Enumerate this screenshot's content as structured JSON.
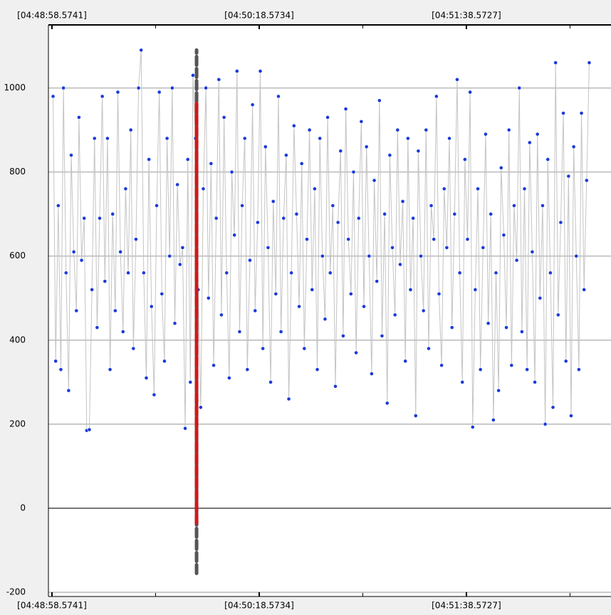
{
  "chart_data": {
    "type": "line-scatter",
    "x": [
      17339,
      17340,
      17341,
      17342,
      17343,
      17344,
      17345,
      17346,
      17347,
      17348,
      17349,
      17350,
      17351,
      17352,
      17353,
      17354,
      17355,
      17356,
      17357,
      17358,
      17359,
      17360,
      17361,
      17362,
      17363,
      17364,
      17365,
      17366,
      17367,
      17368,
      17369,
      17370,
      17371,
      17372,
      17373,
      17374,
      17375,
      17376,
      17377,
      17378,
      17379,
      17380,
      17381,
      17382,
      17383,
      17384,
      17385,
      17386,
      17387,
      17388,
      17389,
      17390,
      17391,
      17392,
      17393,
      17394,
      17395,
      17396,
      17397,
      17398,
      17399,
      17400,
      17401,
      17402,
      17403,
      17404,
      17405,
      17406,
      17407,
      17408,
      17409,
      17410,
      17411,
      17412,
      17413,
      17414,
      17415,
      17416,
      17417,
      17418,
      17419,
      17420,
      17421,
      17422,
      17423,
      17424,
      17425,
      17426,
      17427,
      17428,
      17429,
      17430,
      17431,
      17432,
      17433,
      17434,
      17435,
      17436,
      17437,
      17438,
      17439,
      17440,
      17441,
      17442,
      17443,
      17444,
      17445,
      17446,
      17447,
      17448,
      17449,
      17450,
      17451,
      17452,
      17453,
      17454,
      17455,
      17456,
      17457,
      17458,
      17459,
      17460,
      17461,
      17462,
      17463,
      17464,
      17465,
      17466,
      17467,
      17468,
      17469,
      17470,
      17471,
      17472,
      17473,
      17474,
      17475,
      17476,
      17477,
      17478,
      17479,
      17480,
      17481,
      17482,
      17483,
      17484,
      17485,
      17486,
      17487,
      17488,
      17489,
      17490,
      17491,
      17492,
      17493,
      17494,
      17495,
      17496,
      17497,
      17498,
      17499,
      17500,
      17501,
      17502,
      17503,
      17504,
      17505,
      17506,
      17507,
      17508,
      17509,
      17510,
      17511,
      17512,
      17513,
      17514,
      17515,
      17516,
      17517,
      17518,
      17519,
      17520,
      17521,
      17522,
      17523,
      17524,
      17525,
      17526,
      17527,
      17528,
      17529,
      17530,
      17531,
      17532,
      17533,
      17534,
      17535,
      17536,
      17537,
      17538,
      17539,
      17540,
      17541,
      17542,
      17543,
      17544,
      17545,
      17546
    ],
    "values": [
      980,
      350,
      720,
      330,
      1000,
      560,
      280,
      840,
      610,
      470,
      930,
      590,
      690,
      185,
      187,
      520,
      880,
      430,
      690,
      980,
      540,
      880,
      330,
      700,
      470,
      990,
      610,
      420,
      760,
      560,
      900,
      380,
      640,
      1000,
      1090,
      560,
      310,
      830,
      480,
      270,
      720,
      990,
      510,
      350,
      880,
      600,
      1000,
      440,
      770,
      580,
      620,
      190,
      830,
      300,
      1030,
      880,
      520,
      240,
      760,
      1000,
      500,
      820,
      340,
      690,
      1020,
      460,
      930,
      560,
      310,
      800,
      650,
      1040,
      420,
      720,
      880,
      330,
      590,
      960,
      470,
      680,
      1040,
      380,
      860,
      620,
      300,
      730,
      510,
      980,
      420,
      690,
      840,
      260,
      560,
      910,
      700,
      480,
      820,
      380,
      640,
      900,
      520,
      760,
      330,
      880,
      600,
      450,
      930,
      560,
      720,
      290,
      680,
      850,
      410,
      950,
      640,
      510,
      800,
      370,
      690,
      920,
      480,
      860,
      600,
      320,
      780,
      540,
      970,
      410,
      700,
      250,
      840,
      620,
      460,
      900,
      580,
      730,
      350,
      880,
      520,
      690,
      220,
      850,
      600,
      470,
      900,
      380,
      720,
      640,
      980,
      510,
      340,
      760,
      620,
      880,
      430,
      700,
      1020,
      560,
      300,
      830,
      640,
      990,
      193,
      520,
      760,
      330,
      620,
      890,
      440,
      700,
      210,
      560,
      280,
      810,
      650,
      430,
      900,
      340,
      720,
      590,
      1000,
      420,
      760,
      330,
      870,
      610,
      300,
      890,
      500,
      720,
      200,
      830,
      560,
      240,
      1060,
      460,
      680,
      940,
      350,
      790,
      220,
      860,
      600,
      330,
      940,
      520,
      780,
      1060
    ],
    "line_color": "#c4c4c4",
    "marker_color": "#1a3ad8",
    "xlim": [
      17337.2,
      17554.4
    ],
    "xticks": [
      {
        "value": 17338.5741,
        "label": "[04:48:58.5741]"
      },
      {
        "value": 17418.5734,
        "label": "[04:50:18.5734]"
      },
      {
        "value": 17498.5727,
        "label": "[04:51:38.5727]"
      }
    ],
    "minor_xticks": [
      17378.574,
      17458.573,
      17538.572
    ],
    "ylim": [
      -210,
      1150
    ],
    "yticks": [
      -200,
      0,
      200,
      400,
      600,
      800,
      1000
    ],
    "grid": true,
    "cursor": {
      "x": 17394.4,
      "segments": [
        {
          "ylim": [
            -155,
            1090
          ],
          "color": "#555555"
        },
        {
          "ylim": [
            -35,
            963
          ],
          "color": "#cc1a1a"
        }
      ]
    }
  }
}
